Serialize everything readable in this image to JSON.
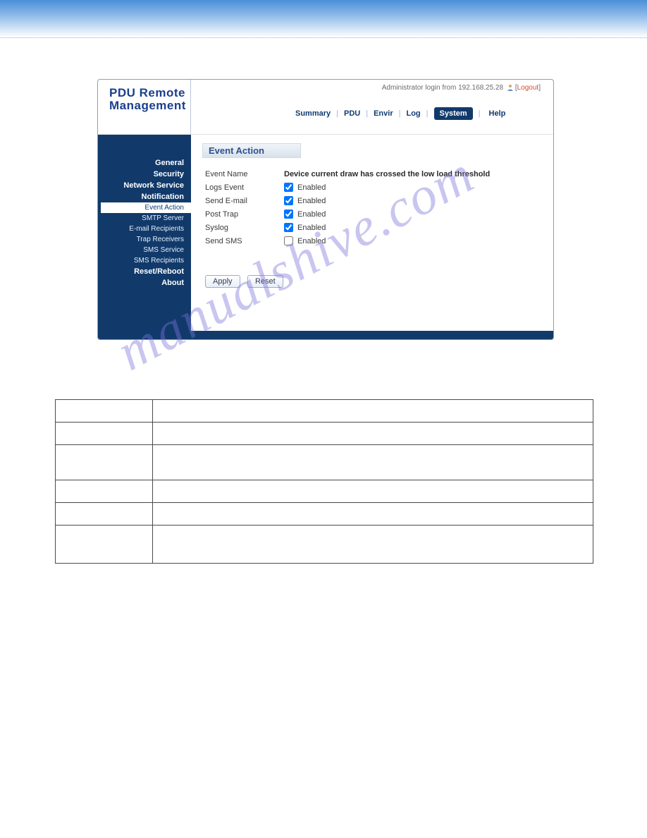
{
  "app": {
    "title_line1": "PDU Remote",
    "title_line2": "Management"
  },
  "login": {
    "prefix": "Administrator login from ",
    "ip": "192.168.25.28",
    "logout": "Logout"
  },
  "topnav": {
    "items": [
      "Summary",
      "PDU",
      "Envir",
      "Log",
      "System",
      "Help"
    ],
    "active": "System"
  },
  "sidebar": {
    "items": [
      {
        "label": "General",
        "type": "main"
      },
      {
        "label": "Security",
        "type": "main"
      },
      {
        "label": "Network Service",
        "type": "main"
      },
      {
        "label": "Notification",
        "type": "main"
      },
      {
        "label": "Event Action",
        "type": "sub",
        "active": true
      },
      {
        "label": "SMTP Server",
        "type": "sub"
      },
      {
        "label": "E-mail Recipients",
        "type": "sub"
      },
      {
        "label": "Trap Receivers",
        "type": "sub"
      },
      {
        "label": "SMS Service",
        "type": "sub"
      },
      {
        "label": "SMS Recipients",
        "type": "sub"
      },
      {
        "label": "Reset/Reboot",
        "type": "main"
      },
      {
        "label": "About",
        "type": "main"
      }
    ]
  },
  "section": {
    "title": "Event Action"
  },
  "form": {
    "event_name_label": "Event Name",
    "event_name_value": "Device current draw has crossed the low load threshold",
    "rows": [
      {
        "label": "Logs Event",
        "checked": true,
        "text": "Enabled"
      },
      {
        "label": "Send E-mail",
        "checked": true,
        "text": "Enabled"
      },
      {
        "label": "Post Trap",
        "checked": true,
        "text": "Enabled"
      },
      {
        "label": "Syslog",
        "checked": true,
        "text": "Enabled"
      },
      {
        "label": "Send SMS",
        "checked": false,
        "text": "Enabled"
      }
    ],
    "apply": "Apply",
    "reset": "Reset"
  },
  "watermark": "manualshive.com"
}
